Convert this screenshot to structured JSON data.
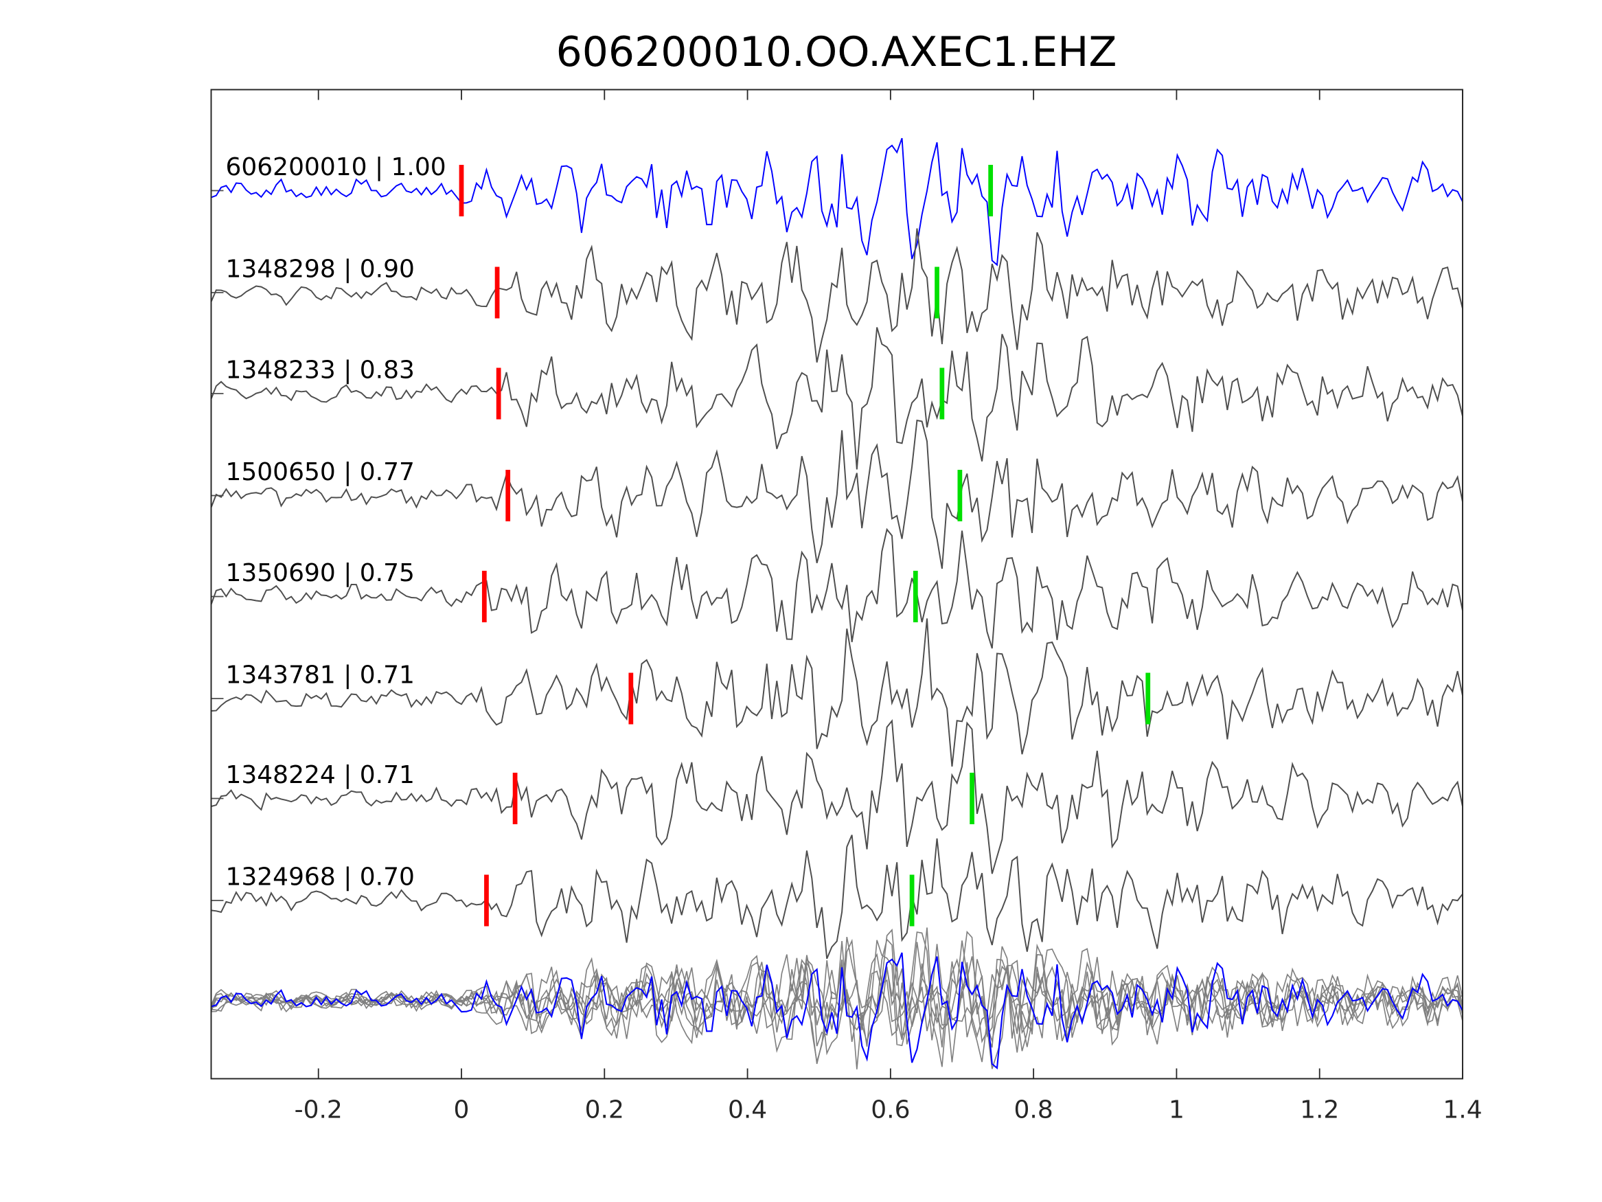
{
  "chart_data": {
    "type": "line",
    "title": "606200010.OO.AXEC1.EHZ",
    "xlabel": "",
    "ylabel": "",
    "xlim": [
      -0.35,
      1.4
    ],
    "xticks": [
      -0.2,
      0,
      0.2,
      0.4,
      0.6,
      0.8,
      1,
      1.2,
      1.4
    ],
    "xtick_labels": [
      "-0.2",
      "0",
      "0.2",
      "0.4",
      "0.6",
      "0.8",
      "1",
      "1.2",
      "1.4"
    ],
    "grid": false,
    "colors": {
      "template": "#0000ff",
      "trace": "#4d4d4d",
      "overlay": "#808080",
      "p_pick": "#ff0000",
      "s_pick": "#00e000"
    },
    "traces": [
      {
        "label": "606200010 | 1.00",
        "id": "606200010",
        "cc": 1.0,
        "p_pick": 0.0,
        "s_pick": 0.74,
        "template": true
      },
      {
        "label": "1348298 | 0.90",
        "id": "1348298",
        "cc": 0.9,
        "p_pick": 0.05,
        "s_pick": 0.665
      },
      {
        "label": "1348233 | 0.83",
        "id": "1348233",
        "cc": 0.83,
        "p_pick": 0.052,
        "s_pick": 0.672
      },
      {
        "label": "1500650 | 0.77",
        "id": "1500650",
        "cc": 0.77,
        "p_pick": 0.065,
        "s_pick": 0.697
      },
      {
        "label": "1350690 | 0.75",
        "id": "1350690",
        "cc": 0.75,
        "p_pick": 0.032,
        "s_pick": 0.635
      },
      {
        "label": "1343781 | 0.71",
        "id": "1343781",
        "cc": 0.71,
        "p_pick": 0.237,
        "s_pick": 0.96
      },
      {
        "label": "1348224 | 0.71",
        "id": "1348224",
        "cc": 0.71,
        "p_pick": 0.075,
        "s_pick": 0.714
      },
      {
        "label": "1324968 | 0.70",
        "id": "1324968",
        "cc": 0.7,
        "p_pick": 0.035,
        "s_pick": 0.63
      }
    ],
    "stack_note": "bottom row overlays all aligned traces (gray) with the template (blue)"
  }
}
